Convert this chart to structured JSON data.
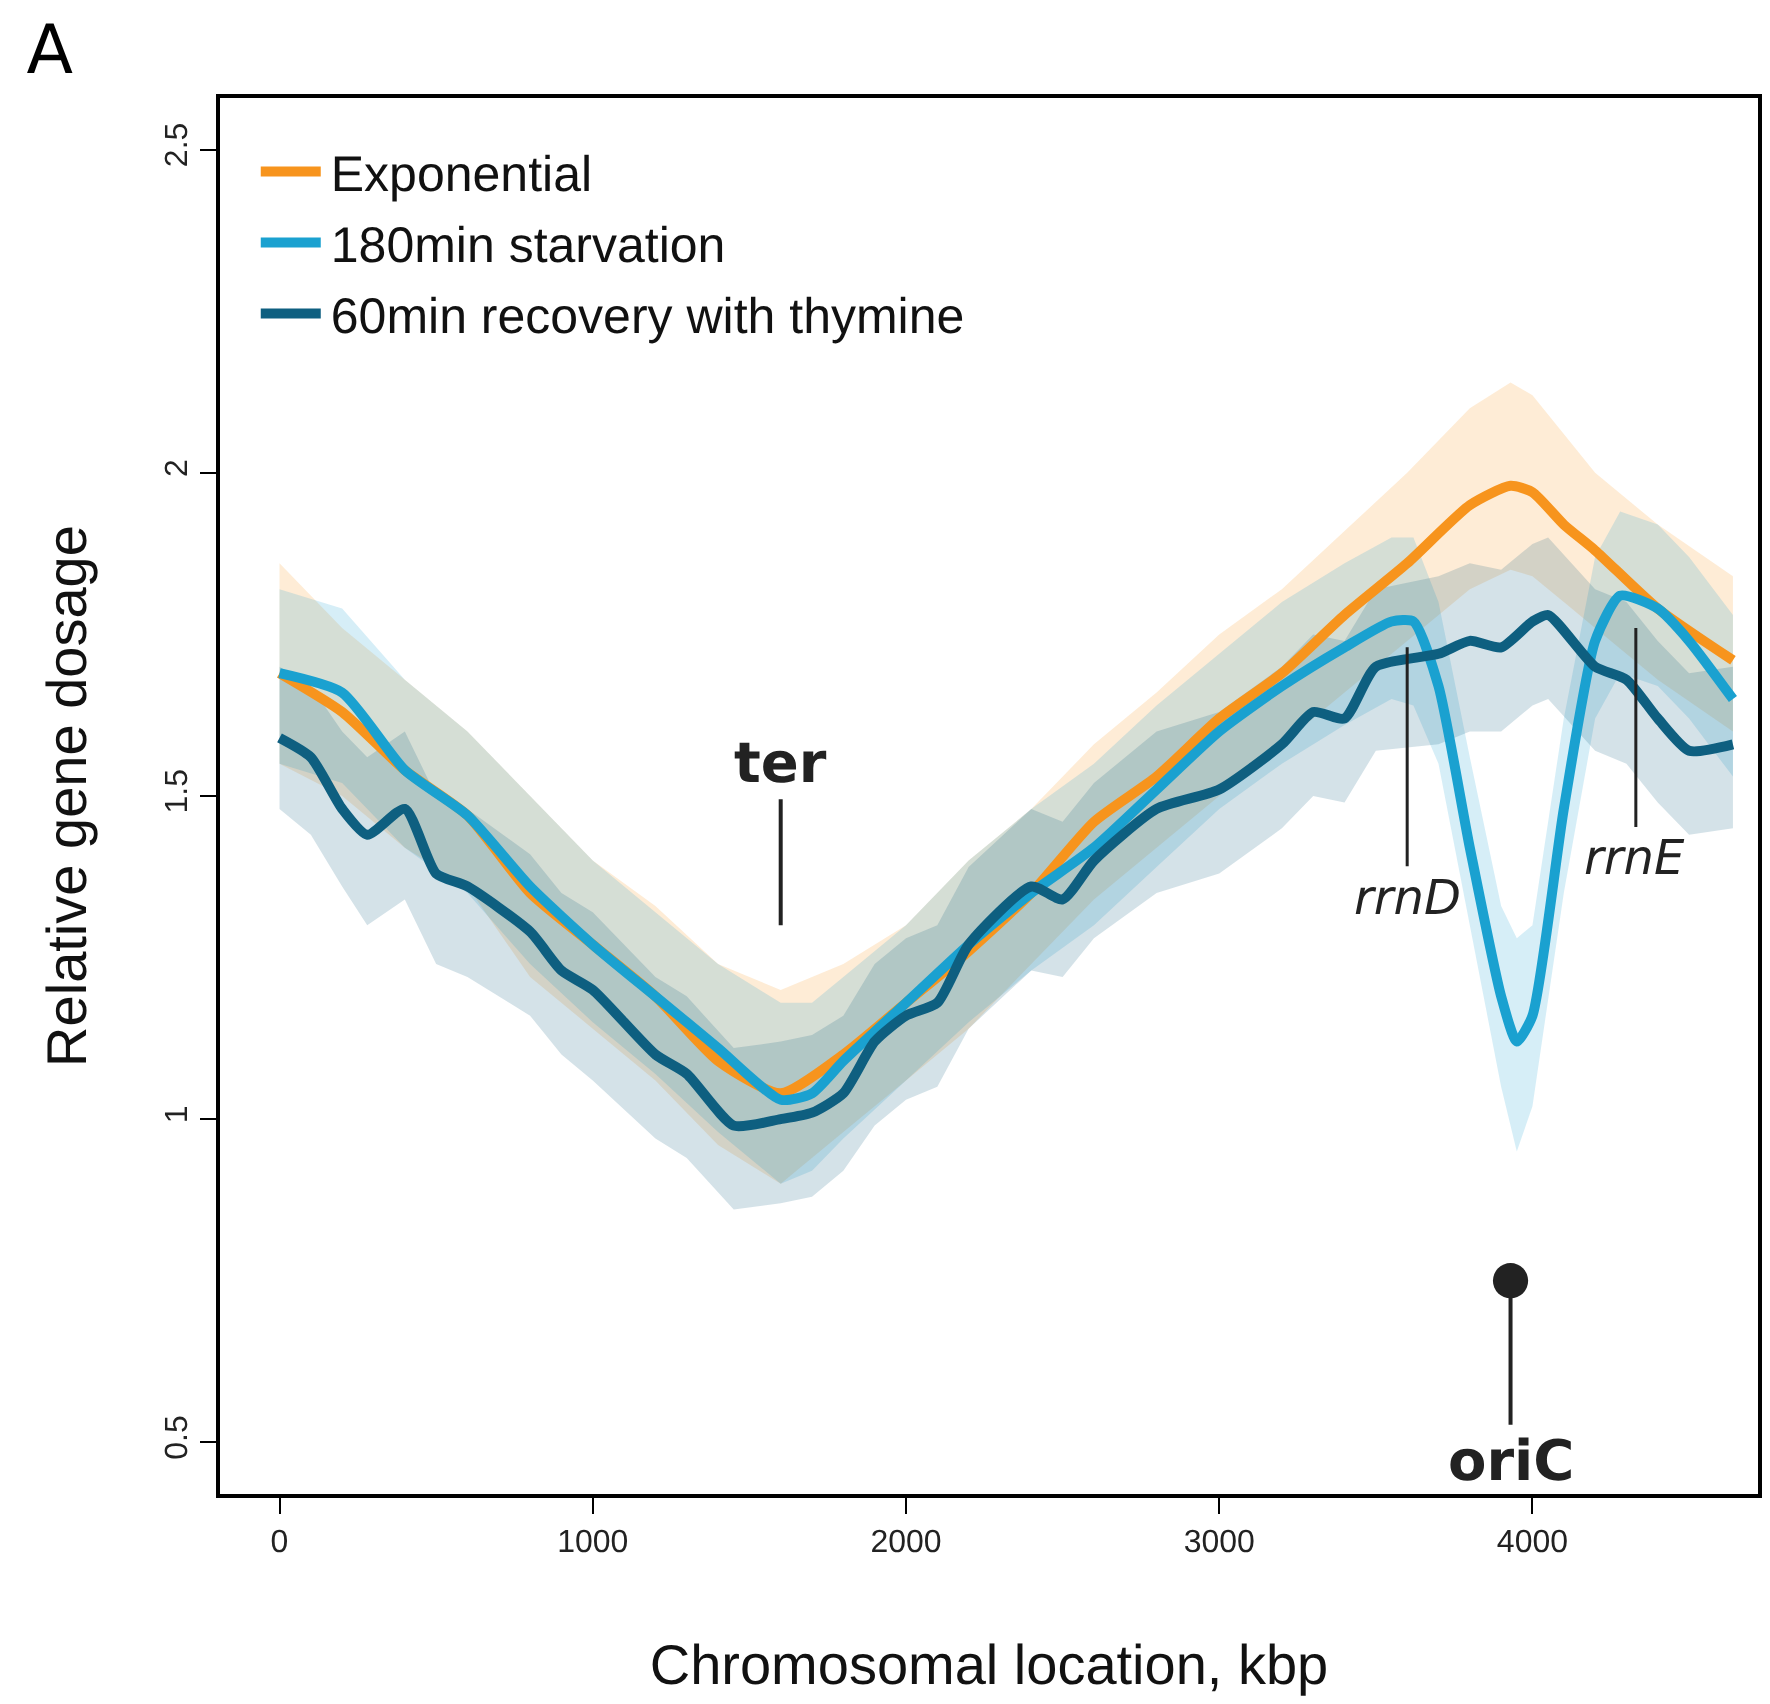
{
  "chart_data": {
    "type": "line",
    "title": "A",
    "xlabel": "Chromosomal location, kbp",
    "ylabel": "Relative gene dosage",
    "xlim": [
      -190,
      4720
    ],
    "ylim": [
      0.42,
      2.58
    ],
    "xticks": [
      0,
      1000,
      2000,
      3000,
      4000
    ],
    "yticks": [
      0.5,
      1.0,
      1.5,
      2.0,
      2.5
    ],
    "grid": false,
    "legend": "top left",
    "line_style": "solid",
    "marker": "none",
    "series": [
      {
        "name": "Exponential",
        "color": "#f7941d",
        "x": [
          0,
          200,
          400,
          600,
          800,
          1000,
          1200,
          1400,
          1600,
          1800,
          2000,
          2200,
          2400,
          2600,
          2800,
          3000,
          3200,
          3400,
          3600,
          3800,
          3930,
          4000,
          4100,
          4200,
          4400,
          4640
        ],
        "values": [
          1.69,
          1.63,
          1.54,
          1.47,
          1.35,
          1.27,
          1.19,
          1.09,
          1.04,
          1.1,
          1.18,
          1.26,
          1.35,
          1.46,
          1.53,
          1.62,
          1.69,
          1.78,
          1.86,
          1.95,
          1.98,
          1.97,
          1.92,
          1.88,
          1.79,
          1.71
        ],
        "lower": [
          1.55,
          1.5,
          1.42,
          1.36,
          1.22,
          1.14,
          1.06,
          0.96,
          0.9,
          0.98,
          1.06,
          1.14,
          1.24,
          1.34,
          1.42,
          1.5,
          1.58,
          1.66,
          1.74,
          1.82,
          1.85,
          1.84,
          1.8,
          1.76,
          1.68,
          1.6
        ],
        "upper": [
          1.86,
          1.76,
          1.68,
          1.6,
          1.5,
          1.4,
          1.33,
          1.24,
          1.2,
          1.24,
          1.3,
          1.4,
          1.48,
          1.58,
          1.66,
          1.75,
          1.82,
          1.91,
          2.0,
          2.1,
          2.14,
          2.12,
          2.06,
          2.0,
          1.92,
          1.84
        ]
      },
      {
        "name": "180min starvation",
        "color": "#1aa1d0",
        "x": [
          0,
          200,
          400,
          600,
          800,
          1000,
          1200,
          1400,
          1600,
          1700,
          1800,
          2000,
          2200,
          2400,
          2600,
          2800,
          3000,
          3200,
          3400,
          3550,
          3620,
          3700,
          3800,
          3900,
          3950,
          4000,
          4100,
          4200,
          4280,
          4400,
          4500,
          4640
        ],
        "values": [
          1.69,
          1.66,
          1.54,
          1.47,
          1.36,
          1.27,
          1.19,
          1.11,
          1.03,
          1.04,
          1.09,
          1.18,
          1.27,
          1.35,
          1.42,
          1.51,
          1.6,
          1.67,
          1.73,
          1.77,
          1.77,
          1.67,
          1.42,
          1.19,
          1.12,
          1.16,
          1.48,
          1.74,
          1.81,
          1.79,
          1.74,
          1.65
        ],
        "lower": [
          1.55,
          1.52,
          1.42,
          1.35,
          1.24,
          1.15,
          1.07,
          0.98,
          0.9,
          0.92,
          0.97,
          1.06,
          1.15,
          1.23,
          1.3,
          1.39,
          1.48,
          1.55,
          1.61,
          1.65,
          1.64,
          1.55,
          1.3,
          1.05,
          0.95,
          1.02,
          1.35,
          1.62,
          1.69,
          1.67,
          1.62,
          1.53
        ],
        "upper": [
          1.82,
          1.79,
          1.68,
          1.6,
          1.5,
          1.4,
          1.32,
          1.24,
          1.18,
          1.18,
          1.22,
          1.3,
          1.4,
          1.48,
          1.55,
          1.64,
          1.72,
          1.8,
          1.86,
          1.9,
          1.9,
          1.8,
          1.56,
          1.33,
          1.28,
          1.3,
          1.62,
          1.87,
          1.94,
          1.92,
          1.87,
          1.78
        ]
      },
      {
        "name": "60min recovery with thymine",
        "color": "#0e5f80",
        "x": [
          0,
          100,
          200,
          280,
          400,
          500,
          600,
          800,
          900,
          1000,
          1200,
          1300,
          1450,
          1600,
          1700,
          1800,
          1900,
          2000,
          2100,
          2200,
          2400,
          2500,
          2600,
          2800,
          3000,
          3200,
          3300,
          3400,
          3500,
          3700,
          3800,
          3900,
          4000,
          4050,
          4200,
          4300,
          4400,
          4500,
          4640
        ],
        "values": [
          1.59,
          1.56,
          1.48,
          1.44,
          1.48,
          1.38,
          1.36,
          1.29,
          1.23,
          1.2,
          1.1,
          1.07,
          0.99,
          1.0,
          1.01,
          1.04,
          1.12,
          1.16,
          1.18,
          1.27,
          1.36,
          1.34,
          1.4,
          1.48,
          1.51,
          1.58,
          1.63,
          1.62,
          1.7,
          1.72,
          1.74,
          1.73,
          1.77,
          1.78,
          1.7,
          1.68,
          1.62,
          1.57,
          1.58
        ],
        "lower": [
          1.48,
          1.44,
          1.36,
          1.3,
          1.34,
          1.24,
          1.22,
          1.16,
          1.1,
          1.06,
          0.97,
          0.94,
          0.86,
          0.87,
          0.88,
          0.92,
          0.99,
          1.03,
          1.05,
          1.14,
          1.23,
          1.22,
          1.28,
          1.35,
          1.38,
          1.45,
          1.5,
          1.49,
          1.57,
          1.58,
          1.6,
          1.6,
          1.64,
          1.65,
          1.57,
          1.55,
          1.49,
          1.44,
          1.45
        ],
        "upper": [
          1.7,
          1.67,
          1.6,
          1.56,
          1.6,
          1.5,
          1.48,
          1.41,
          1.35,
          1.32,
          1.22,
          1.19,
          1.11,
          1.12,
          1.13,
          1.16,
          1.24,
          1.28,
          1.3,
          1.39,
          1.48,
          1.46,
          1.52,
          1.6,
          1.63,
          1.7,
          1.75,
          1.74,
          1.82,
          1.84,
          1.86,
          1.85,
          1.89,
          1.9,
          1.82,
          1.8,
          1.74,
          1.69,
          1.7
        ]
      }
    ],
    "annotations": [
      {
        "text": "ter",
        "x": 1600,
        "y": 1.04
      },
      {
        "text": "rrnD",
        "x": 3600,
        "y": 1.73
      },
      {
        "text": "rrnE",
        "x": 4330,
        "y": 1.76
      },
      {
        "text": "oriC",
        "x": 3930,
        "y": 0.75
      }
    ]
  }
}
